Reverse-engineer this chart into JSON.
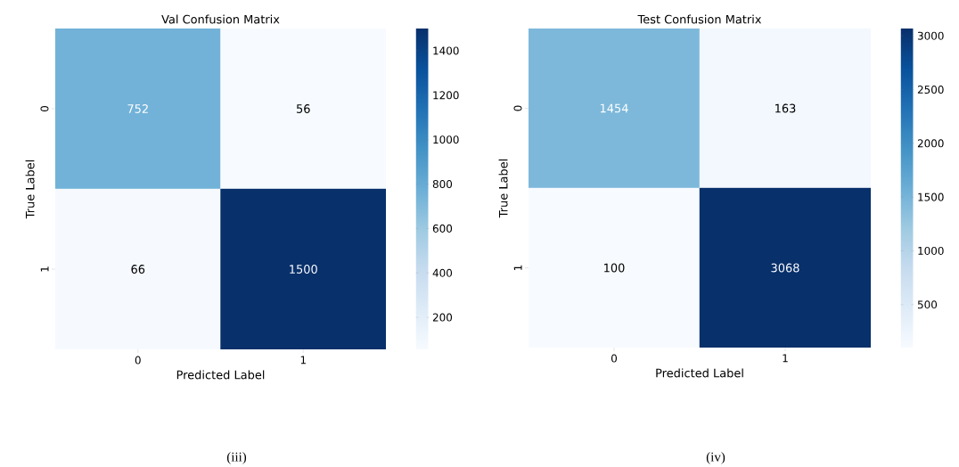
{
  "chart_data": [
    {
      "type": "heatmap",
      "title": "Val Confusion Matrix",
      "xlabel": "Predicted Label",
      "ylabel": "True Label",
      "categories": [
        "0",
        "1"
      ],
      "y_categories": [
        "0",
        "1"
      ],
      "cells": [
        [
          752,
          56
        ],
        [
          66,
          1500
        ]
      ],
      "clim": [
        56,
        1500
      ],
      "cticks": [
        200,
        400,
        600,
        800,
        1000,
        1200,
        1400
      ],
      "data_labels": true,
      "annotations": [
        "(iii)"
      ]
    },
    {
      "type": "heatmap",
      "title": "Test Confusion Matrix",
      "xlabel": "Predicted Label",
      "ylabel": "True Label",
      "categories": [
        "0",
        "1"
      ],
      "y_categories": [
        "0",
        "1"
      ],
      "cells": [
        [
          1454,
          163
        ],
        [
          100,
          3068
        ]
      ],
      "clim": [
        100,
        3068
      ],
      "cticks": [
        500,
        1000,
        1500,
        2000,
        2500,
        3000
      ],
      "data_labels": true,
      "annotations": [
        "(iv)"
      ]
    }
  ]
}
